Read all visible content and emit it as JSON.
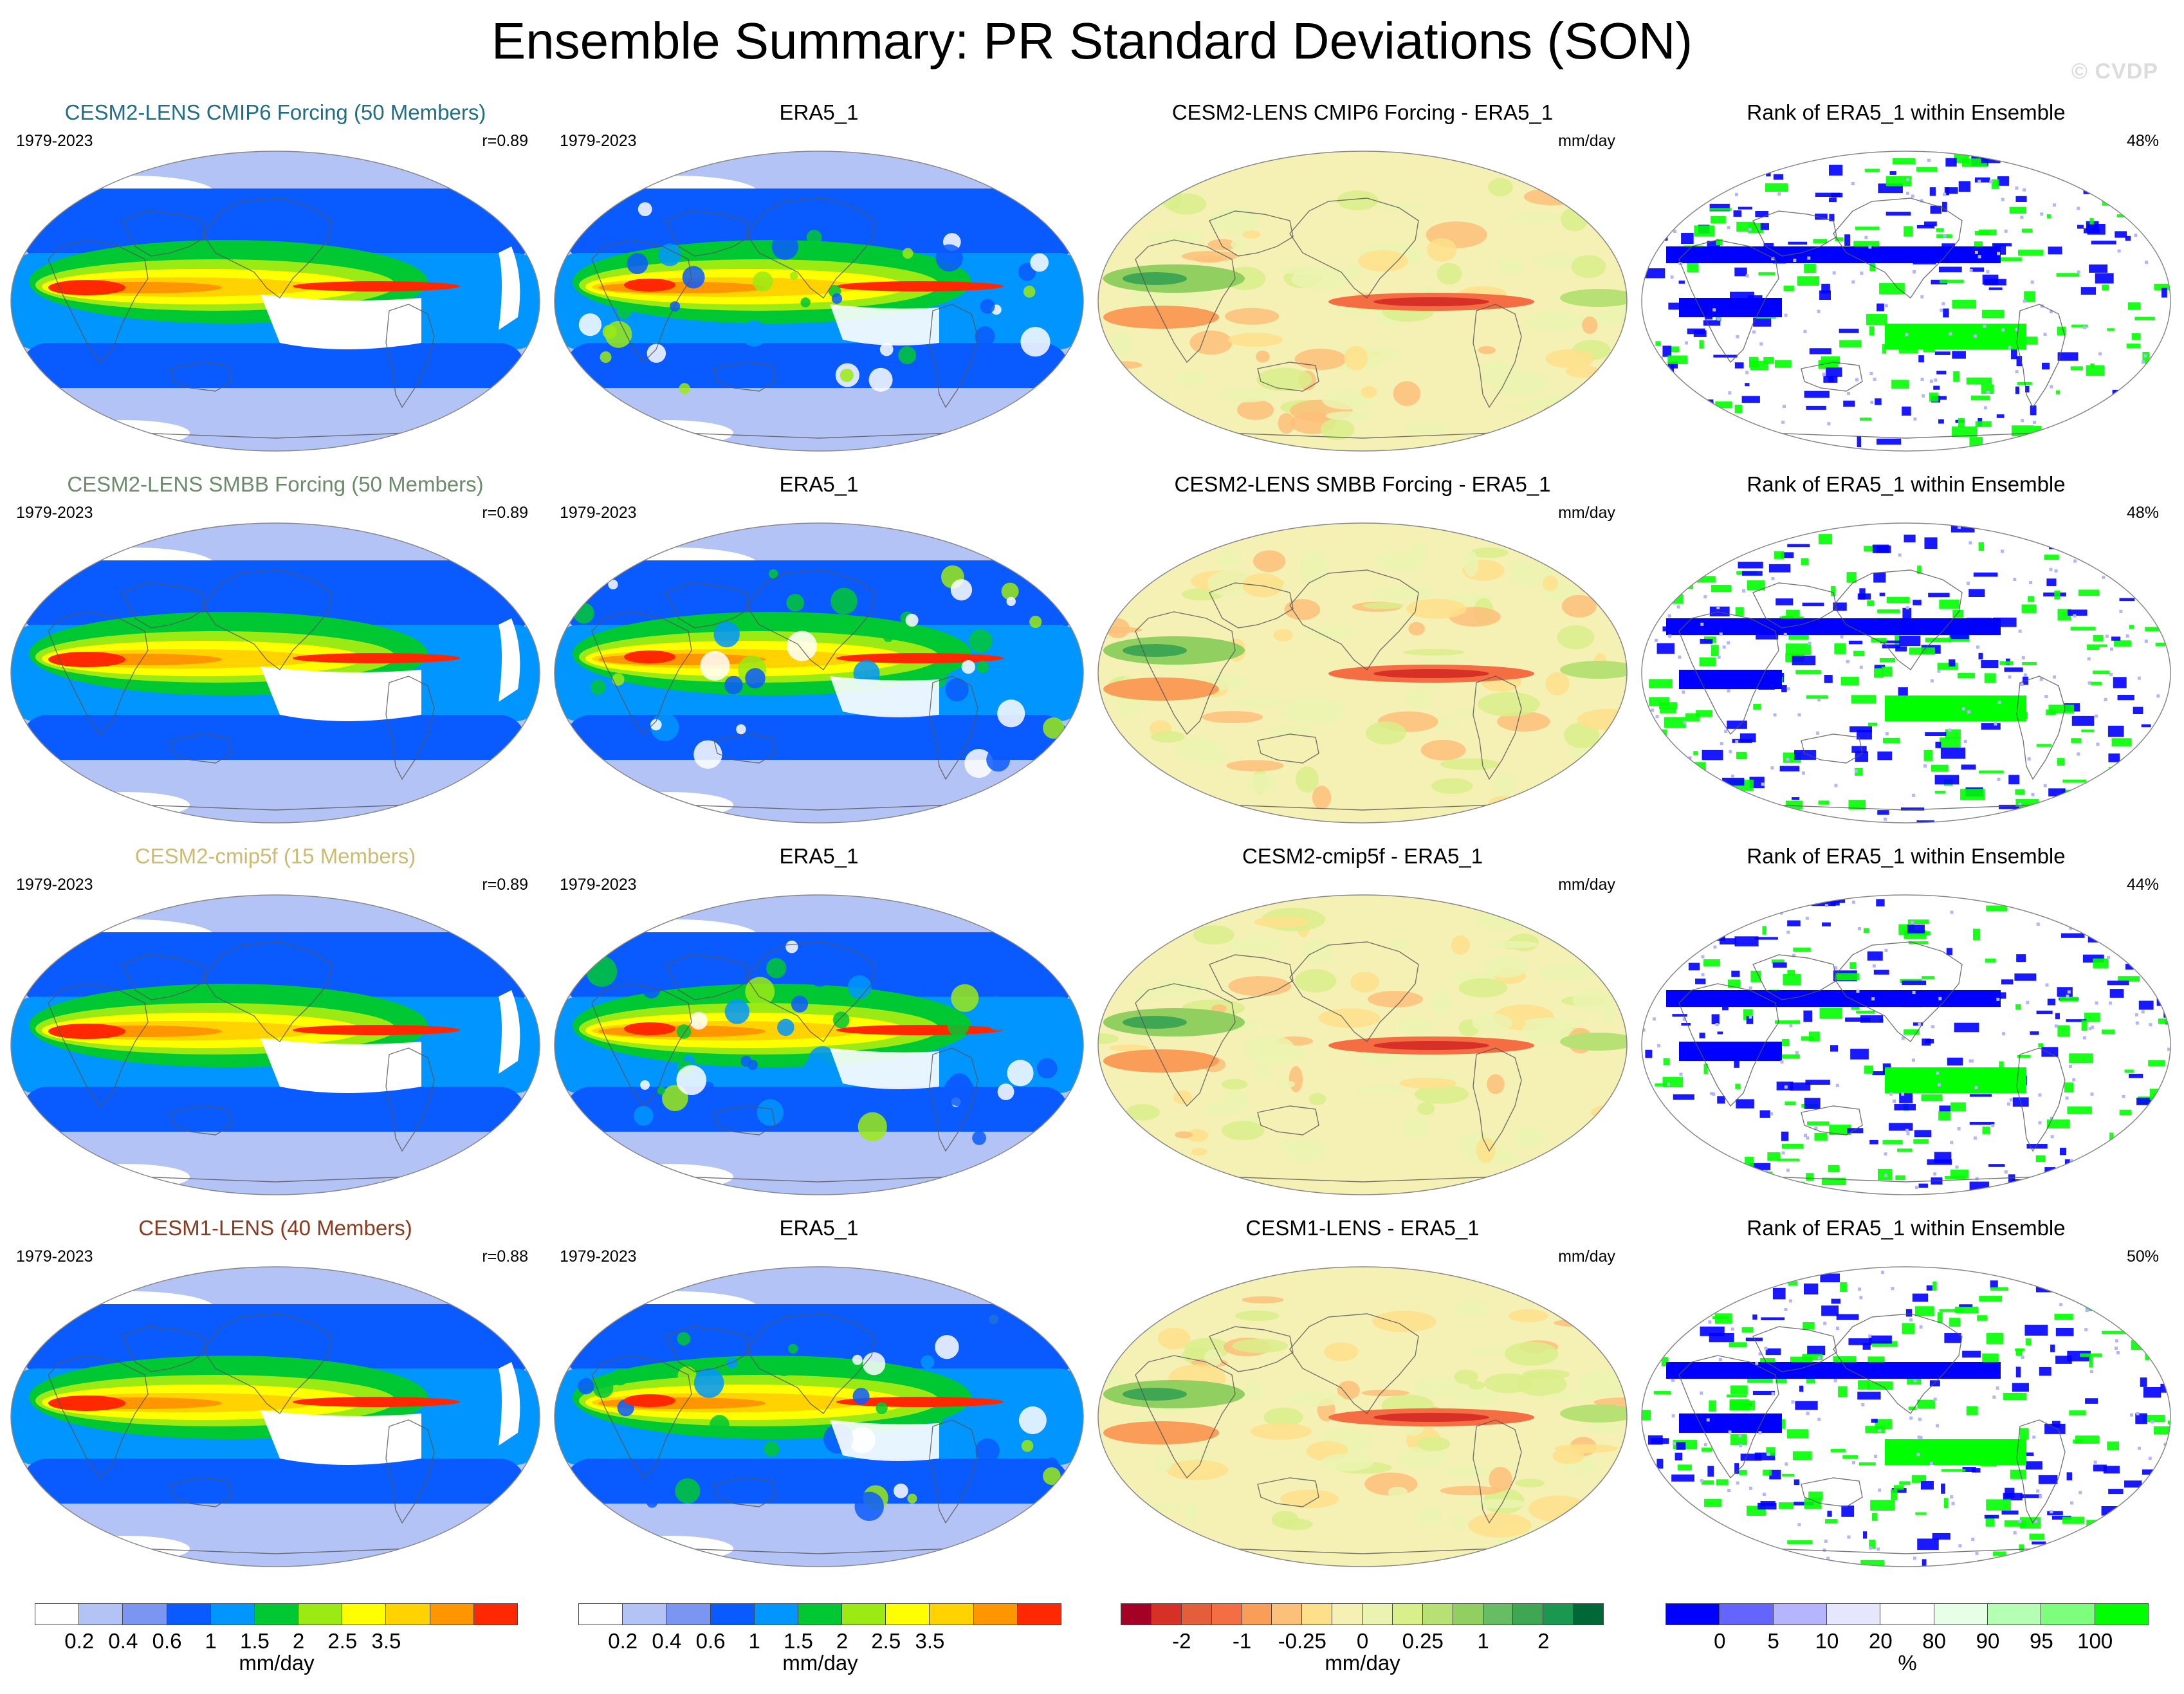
{
  "title": "Ensemble Summary: PR Standard Deviations (SON)",
  "watermark": "© CVDP",
  "rows": [
    {
      "ensemble": {
        "title": "CESM2-LENS CMIP6 Forcing (50 Members)",
        "color": "#1f6e86",
        "years": "1979-2023",
        "r": "r=0.89"
      },
      "obs": {
        "title": "ERA5_1",
        "years": "1979-2023"
      },
      "diff": {
        "title": "CESM2-LENS CMIP6 Forcing - ERA5_1",
        "unit": "mm/day"
      },
      "rank": {
        "title": "Rank of ERA5_1 within Ensemble",
        "pct": "48%"
      }
    },
    {
      "ensemble": {
        "title": "CESM2-LENS SMBB Forcing (50 Members)",
        "color": "#6b8c6b",
        "years": "1979-2023",
        "r": "r=0.89"
      },
      "obs": {
        "title": "ERA5_1",
        "years": "1979-2023"
      },
      "diff": {
        "title": "CESM2-LENS SMBB Forcing - ERA5_1",
        "unit": "mm/day"
      },
      "rank": {
        "title": "Rank of ERA5_1 within Ensemble",
        "pct": "48%"
      }
    },
    {
      "ensemble": {
        "title": "CESM2-cmip5f (15 Members)",
        "color": "#cdbb72",
        "years": "1979-2023",
        "r": "r=0.89"
      },
      "obs": {
        "title": "ERA5_1",
        "years": "1979-2023"
      },
      "diff": {
        "title": "CESM2-cmip5f - ERA5_1",
        "unit": "mm/day"
      },
      "rank": {
        "title": "Rank of ERA5_1 within Ensemble",
        "pct": "44%"
      }
    },
    {
      "ensemble": {
        "title": "CESM1-LENS (40 Members)",
        "color": "#8b3a1e",
        "years": "1979-2023",
        "r": "r=0.88"
      },
      "obs": {
        "title": "ERA5_1",
        "years": "1979-2023"
      },
      "diff": {
        "title": "CESM1-LENS - ERA5_1",
        "unit": "mm/day"
      },
      "rank": {
        "title": "Rank of ERA5_1 within Ensemble",
        "pct": "50%"
      }
    }
  ],
  "colorbars": {
    "std": {
      "colors": [
        "#ffffff",
        "#b4c3f5",
        "#7a96f2",
        "#0a5bff",
        "#0095ff",
        "#00c832",
        "#9bea14",
        "#ffff00",
        "#ffd200",
        "#ff9600",
        "#ff2800"
      ],
      "labels": [
        "0.2",
        "0.4",
        "0.6",
        "1",
        "1.5",
        "2",
        "2.5",
        "3.5"
      ],
      "unit": "mm/day"
    },
    "diff": {
      "colors": [
        "#a50026",
        "#d73027",
        "#e55e3c",
        "#f46d43",
        "#f99d59",
        "#fdc07a",
        "#fee08b",
        "#f5f0b4",
        "#ebf3b0",
        "#d9ef8b",
        "#b7e075",
        "#91cf60",
        "#66bd63",
        "#3fa653",
        "#1a9850",
        "#006837"
      ],
      "labels": [
        "-2",
        "-1",
        "-0.25",
        "0",
        "0.25",
        "1",
        "2"
      ],
      "unit": "mm/day"
    },
    "rank": {
      "colors": [
        "#0000ff",
        "#6464ff",
        "#b4b4ff",
        "#e6e6ff",
        "#ffffff",
        "#e6ffe6",
        "#b4ffb4",
        "#7dff7d",
        "#00ff00"
      ],
      "labels": [
        "0",
        "5",
        "10",
        "20",
        "80",
        "90",
        "95",
        "100"
      ],
      "unit": "%"
    }
  }
}
